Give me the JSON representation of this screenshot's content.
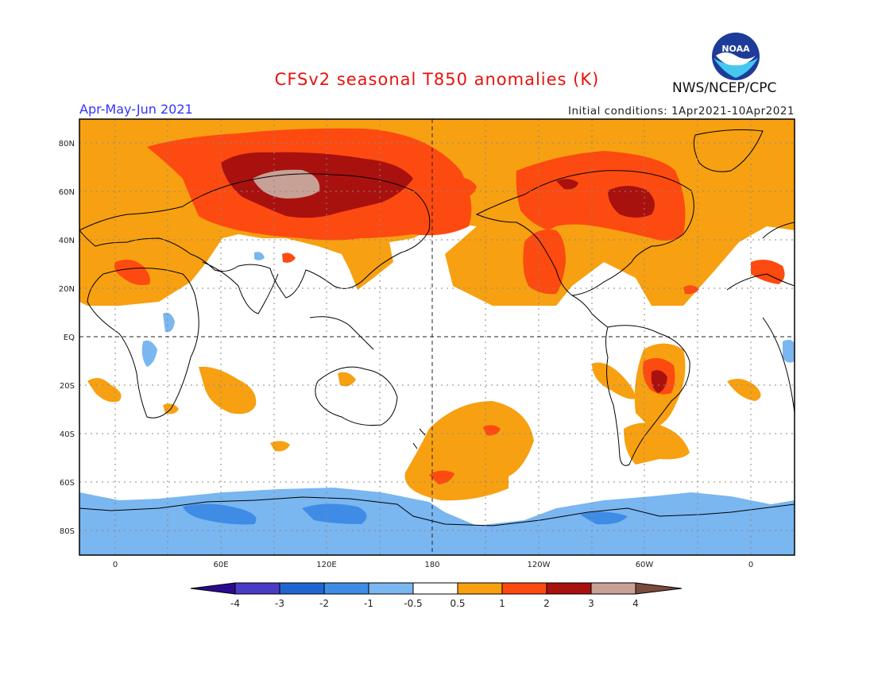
{
  "title": "CFSv2 seasonal T850 anomalies (K)",
  "period": "Apr-May-Jun 2021",
  "initial_conditions": "Initial conditions: 1Apr2021-10Apr2021",
  "organization": "NWS/NCEP/CPC",
  "logo_text": "NOAA",
  "lat_labels": [
    "80N",
    "60N",
    "40N",
    "20N",
    "EQ",
    "20S",
    "40S",
    "60S",
    "80S"
  ],
  "lon_labels": [
    "0",
    "60E",
    "120E",
    "180",
    "120W",
    "60W",
    "0"
  ],
  "colorbar": {
    "labels": [
      "-4",
      "-3",
      "-2",
      "-1",
      "-0.5",
      "0.5",
      "1",
      "2",
      "3",
      "4"
    ],
    "colors": [
      "#2a0a8c",
      "#4a3bc4",
      "#2166d0",
      "#3f8ce6",
      "#7ab6f0",
      "#ffffff",
      "#f7a011",
      "#fd4a10",
      "#a9110f",
      "#c7a096",
      "#7a4a3a"
    ]
  },
  "colors": {
    "title": "#e8120c",
    "period": "#3333ff",
    "ocean": "#ffffff",
    "land_outline": "#000000"
  }
}
